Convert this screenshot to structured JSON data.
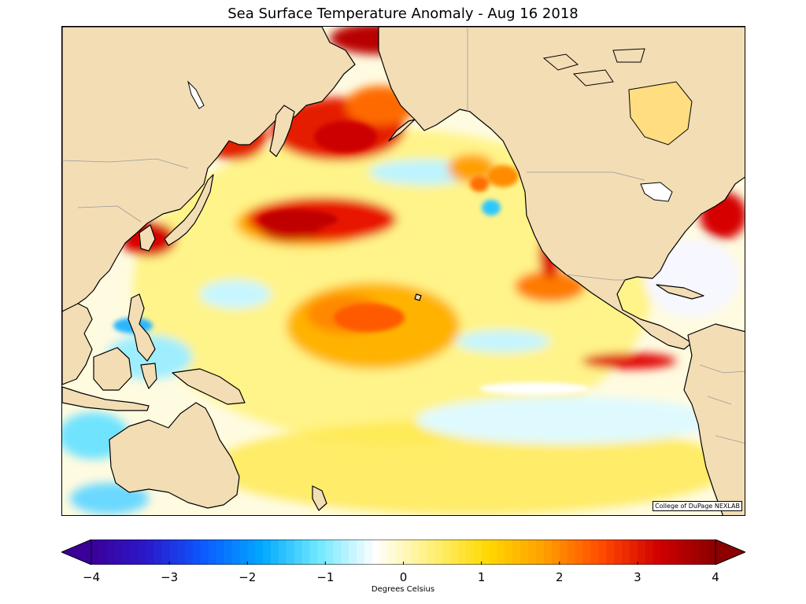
{
  "title": "Sea Surface Temperature Anomaly - Aug 16 2018",
  "credit": "College of DuPage NEXLAB",
  "colorbar": {
    "label": "Degrees Celsius",
    "min": -4,
    "max": 4,
    "ticks": [
      "−4",
      "−3",
      "−2",
      "−1",
      "0",
      "1",
      "2",
      "3",
      "4"
    ],
    "tick_values": [
      -4,
      -3,
      -2,
      -1,
      0,
      1,
      2,
      3,
      4
    ],
    "stops": [
      "#3b0099",
      "#2a1acc",
      "#0b5cff",
      "#00a8ff",
      "#6fe8ff",
      "#ffffff",
      "#fff07a",
      "#ffd800",
      "#ff9d00",
      "#ff4a00",
      "#d10000",
      "#8b0000"
    ]
  },
  "colors": {
    "land": "#f3ddb5",
    "coast": "#000000",
    "border": "#9a9a9a"
  }
}
